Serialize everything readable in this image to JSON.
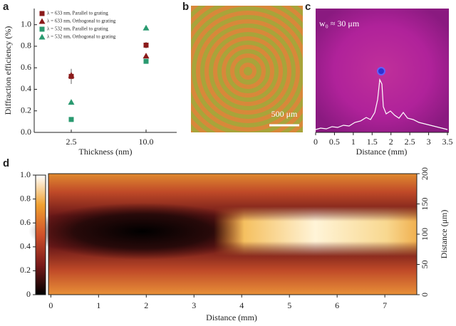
{
  "chart_data": [
    {
      "type": "scatter",
      "panel": "a",
      "xlabel": "Thickness (nm)",
      "ylabel": "Diffraction efficiency (%)",
      "categories": [
        "2.5",
        "10.0"
      ],
      "ylim": [
        0,
        1.15
      ],
      "yticks": [
        {
          "value": 0,
          "label": "0.0"
        },
        0.2,
        0.4,
        0.6,
        0.8,
        {
          "value": 1,
          "label": "1.0"
        }
      ],
      "legend": "upper left",
      "series": [
        {
          "name": "λ = 633 nm, Parallel to grating",
          "color": "#8b1a1a",
          "marker": "square",
          "values": [
            0.52,
            0.81
          ],
          "errors": [
            0.07,
            0.03
          ]
        },
        {
          "name": "λ = 633 nm, Orthogonal to grating",
          "color": "#8b1a1a",
          "marker": "triangle",
          "values": [
            0.53,
            0.71
          ]
        },
        {
          "name": "λ = 532 nm, Parallel to grating",
          "color": "#2a9a70",
          "marker": "square",
          "values": [
            0.12,
            0.66
          ]
        },
        {
          "name": "λ = 532 nm, Orthogonal to grating",
          "color": "#2a9a70",
          "marker": "triangle",
          "values": [
            0.28,
            0.97
          ]
        }
      ]
    },
    {
      "type": "image",
      "panel": "b",
      "scale_bar": "500 μm"
    },
    {
      "type": "image",
      "panel": "c",
      "annotation": "w₀ ≈ 30 μm",
      "xlabel": "Distance (mm)",
      "xlim": [
        0,
        3.5
      ],
      "xticks": [
        0,
        0.5,
        1,
        1.5,
        2,
        2.5,
        3,
        3.5
      ]
    },
    {
      "type": "heatmap",
      "panel": "d",
      "xlabel": "Distance (mm)",
      "ylabel": "Distance (μm)",
      "xlim": [
        -0.05,
        7.67
      ],
      "xticks": [
        0,
        1,
        2,
        3,
        4,
        5,
        6,
        7
      ],
      "ylim": [
        0,
        200
      ],
      "yticks": [
        0,
        50,
        100,
        150,
        200
      ],
      "cmap": [
        "#000000",
        "#7a1a1a",
        "#d0502a",
        "#f0a030",
        "#ffffff"
      ],
      "clim": [
        0,
        1
      ],
      "cticks": [
        0,
        0.2,
        0.4,
        0.6,
        0.8,
        {
          "value": 1,
          "label": "1.0"
        }
      ]
    }
  ]
}
